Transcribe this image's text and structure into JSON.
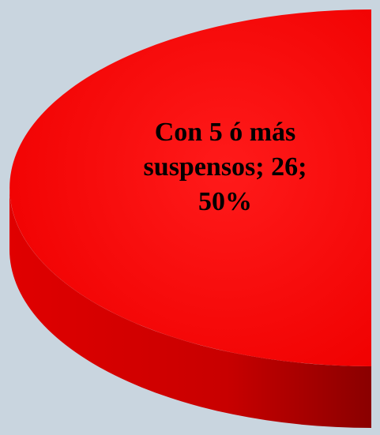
{
  "chart_data": {
    "type": "pie",
    "values": [
      26
    ],
    "percentages": [
      50
    ],
    "value_labels": [
      "Con 5 ó más suspensos; 26; 50%"
    ],
    "colors": [
      "#ff0000"
    ]
  }
}
